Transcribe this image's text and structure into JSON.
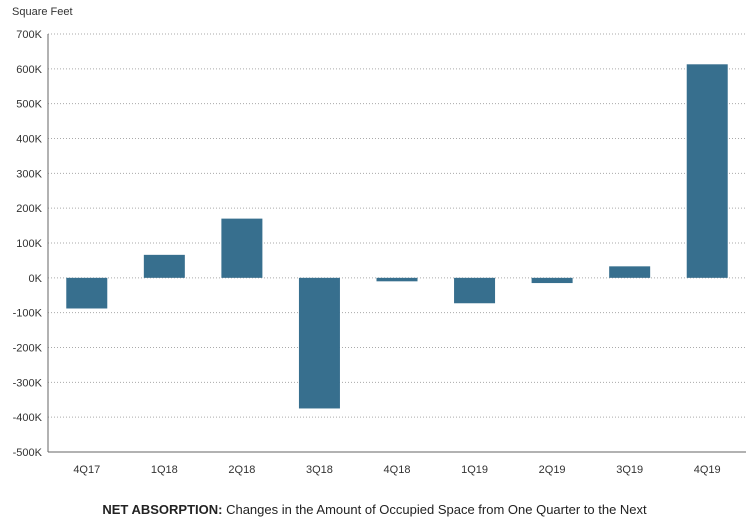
{
  "chart_data": {
    "type": "bar",
    "ylabel": "Square Feet",
    "caption_bold": "NET ABSORPTION:",
    "caption_text": " Changes in the Amount of Occupied Space from One Quarter to the Next",
    "categories": [
      "4Q17",
      "1Q18",
      "2Q18",
      "3Q18",
      "4Q18",
      "1Q19",
      "2Q19",
      "3Q19",
      "4Q19"
    ],
    "values": [
      -88000,
      66000,
      170000,
      -375000,
      -10000,
      -73000,
      -15000,
      33000,
      613000
    ],
    "ylim": [
      -500000,
      700000
    ],
    "yticks": [
      700000,
      600000,
      500000,
      400000,
      300000,
      200000,
      100000,
      0,
      -100000,
      -200000,
      -300000,
      -400000,
      -500000
    ],
    "ytick_labels": [
      "700K",
      "600K",
      "500K",
      "400K",
      "300K",
      "200K",
      "100K",
      "0K",
      "-100K",
      "-200K",
      "-300K",
      "-400K",
      "-500K"
    ],
    "grid": true,
    "bar_color": "#376f8e"
  }
}
